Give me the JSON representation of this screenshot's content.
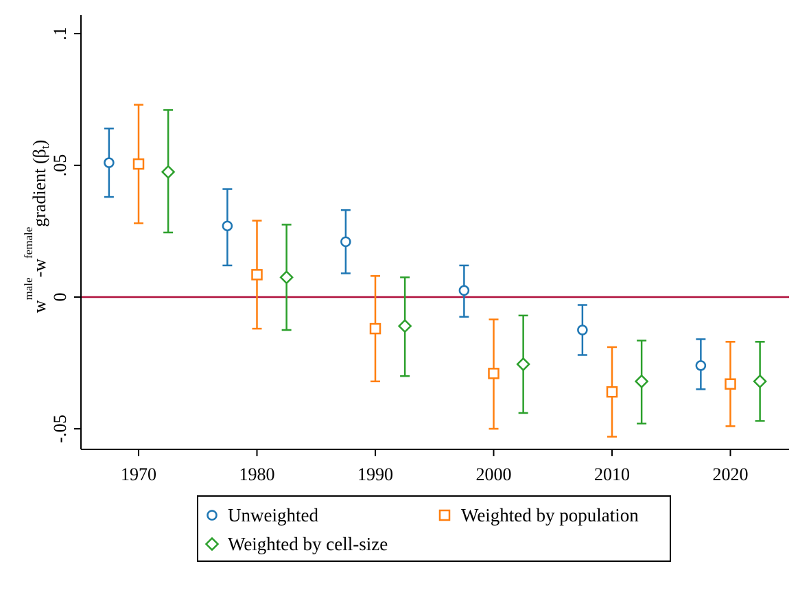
{
  "chart_data": {
    "type": "scatter",
    "title": "",
    "ylabel": {
      "parts": [
        "w",
        "male",
        "-w",
        "female",
        "gradient (β",
        "t",
        ")"
      ]
    },
    "xlabel": "",
    "x_ticks": [
      "1970",
      "1980",
      "1990",
      "2000",
      "2010",
      "2020"
    ],
    "y_ticks": [
      ".1",
      ".05",
      "0",
      "-.05"
    ],
    "xlim": [
      1965,
      2025
    ],
    "ylim": [
      -0.057,
      0.1
    ],
    "reference_line": {
      "y": 0,
      "color": "#b0103c"
    },
    "grid": false,
    "legend_position": "bottom",
    "series": [
      {
        "name": "Unweighted",
        "marker": "circle",
        "color": "#1f77b4",
        "points": [
          {
            "x": 1967.5,
            "y": 0.051,
            "low": 0.038,
            "high": 0.064
          },
          {
            "x": 1977.5,
            "y": 0.027,
            "low": 0.012,
            "high": 0.041
          },
          {
            "x": 1987.5,
            "y": 0.021,
            "low": 0.009,
            "high": 0.033
          },
          {
            "x": 1997.5,
            "y": 0.0025,
            "low": -0.0075,
            "high": 0.012
          },
          {
            "x": 2007.5,
            "y": -0.0125,
            "low": -0.022,
            "high": -0.003
          },
          {
            "x": 2017.5,
            "y": -0.026,
            "low": -0.035,
            "high": -0.016
          }
        ]
      },
      {
        "name": "Weighted by population",
        "marker": "square",
        "color": "#ff7f0e",
        "points": [
          {
            "x": 1970,
            "y": 0.0505,
            "low": 0.028,
            "high": 0.073
          },
          {
            "x": 1980,
            "y": 0.0085,
            "low": -0.012,
            "high": 0.029
          },
          {
            "x": 1990,
            "y": -0.012,
            "low": -0.032,
            "high": 0.008
          },
          {
            "x": 2000,
            "y": -0.029,
            "low": -0.05,
            "high": -0.0085
          },
          {
            "x": 2010,
            "y": -0.036,
            "low": -0.053,
            "high": -0.019
          },
          {
            "x": 2020,
            "y": -0.033,
            "low": -0.049,
            "high": -0.017
          }
        ]
      },
      {
        "name": "Weighted by cell-size",
        "marker": "diamond",
        "color": "#2ca02c",
        "points": [
          {
            "x": 1972.5,
            "y": 0.0475,
            "low": 0.0245,
            "high": 0.071
          },
          {
            "x": 1982.5,
            "y": 0.0075,
            "low": -0.0125,
            "high": 0.0275
          },
          {
            "x": 1992.5,
            "y": -0.011,
            "low": -0.03,
            "high": 0.0075
          },
          {
            "x": 2002.5,
            "y": -0.0255,
            "low": -0.044,
            "high": -0.007
          },
          {
            "x": 2012.5,
            "y": -0.032,
            "low": -0.048,
            "high": -0.0165
          },
          {
            "x": 2022.5,
            "y": -0.032,
            "low": -0.047,
            "high": -0.017
          }
        ]
      }
    ]
  },
  "legend": {
    "items": [
      {
        "label": "Unweighted",
        "marker": "circle",
        "color": "#1f77b4"
      },
      {
        "label": "Weighted by population",
        "marker": "square",
        "color": "#ff7f0e"
      },
      {
        "label": "Weighted by cell-size",
        "marker": "diamond",
        "color": "#2ca02c"
      }
    ]
  }
}
